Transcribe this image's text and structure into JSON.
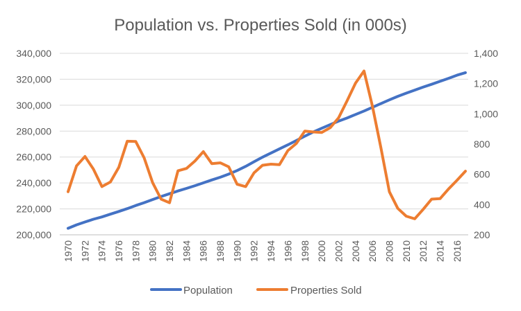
{
  "chart_data": {
    "type": "line",
    "title": "Population vs. Properties Sold (in 000s)",
    "x": [
      1970,
      1971,
      1972,
      1973,
      1974,
      1975,
      1976,
      1977,
      1978,
      1979,
      1980,
      1981,
      1982,
      1983,
      1984,
      1985,
      1986,
      1987,
      1988,
      1989,
      1990,
      1991,
      1992,
      1993,
      1994,
      1995,
      1996,
      1997,
      1998,
      1999,
      2000,
      2001,
      2002,
      2003,
      2004,
      2005,
      2006,
      2007,
      2008,
      2009,
      2010,
      2011,
      2012,
      2013,
      2014,
      2015,
      2016,
      2017
    ],
    "x_tick_labels": [
      "1970",
      "1972",
      "1974",
      "1976",
      "1978",
      "1980",
      "1982",
      "1984",
      "1986",
      "1988",
      "1990",
      "1992",
      "1994",
      "1996",
      "1998",
      "2000",
      "2002",
      "2004",
      "2006",
      "2008",
      "2010",
      "2012",
      "2014",
      "2016"
    ],
    "y_left": {
      "min": 200000,
      "max": 340000,
      "step": 20000,
      "tick_labels": [
        "200,000",
        "220,000",
        "240,000",
        "260,000",
        "280,000",
        "300,000",
        "320,000",
        "340,000"
      ]
    },
    "y_right": {
      "min": 200,
      "max": 1400,
      "step": 200,
      "tick_labels": [
        "200",
        "400",
        "600",
        "800",
        "1,000",
        "1,200",
        "1,400"
      ]
    },
    "series": [
      {
        "name": "Population",
        "axis": "left",
        "color": "#4472C4",
        "values": [
          205000,
          207700,
          209900,
          212000,
          213800,
          215900,
          218000,
          220200,
          222600,
          224800,
          227200,
          229500,
          231700,
          233800,
          235800,
          237900,
          240100,
          242300,
          244400,
          246800,
          249600,
          252800,
          256400,
          259900,
          263100,
          266300,
          269400,
          272700,
          276100,
          279300,
          282200,
          285000,
          287700,
          290100,
          292800,
          295500,
          298400,
          301200,
          304100,
          306800,
          309300,
          311600,
          313900,
          316100,
          318400,
          320700,
          323100,
          325100
        ]
      },
      {
        "name": "Properties Sold",
        "axis": "right",
        "color": "#ED7D31",
        "values": [
          485,
          656,
          718,
          634,
          519,
          549,
          646,
          819,
          817,
          709,
          545,
          436,
          412,
          623,
          639,
          688,
          750,
          671,
          676,
          650,
          534,
          519,
          610,
          660,
          667,
          664,
          757,
          804,
          886,
          880,
          877,
          908,
          973,
          1086,
          1203,
          1283,
          1051,
          776,
          485,
          375,
          323,
          306,
          368,
          436,
          439,
          503,
          560,
          621
        ]
      }
    ],
    "legend_position": "bottom"
  }
}
